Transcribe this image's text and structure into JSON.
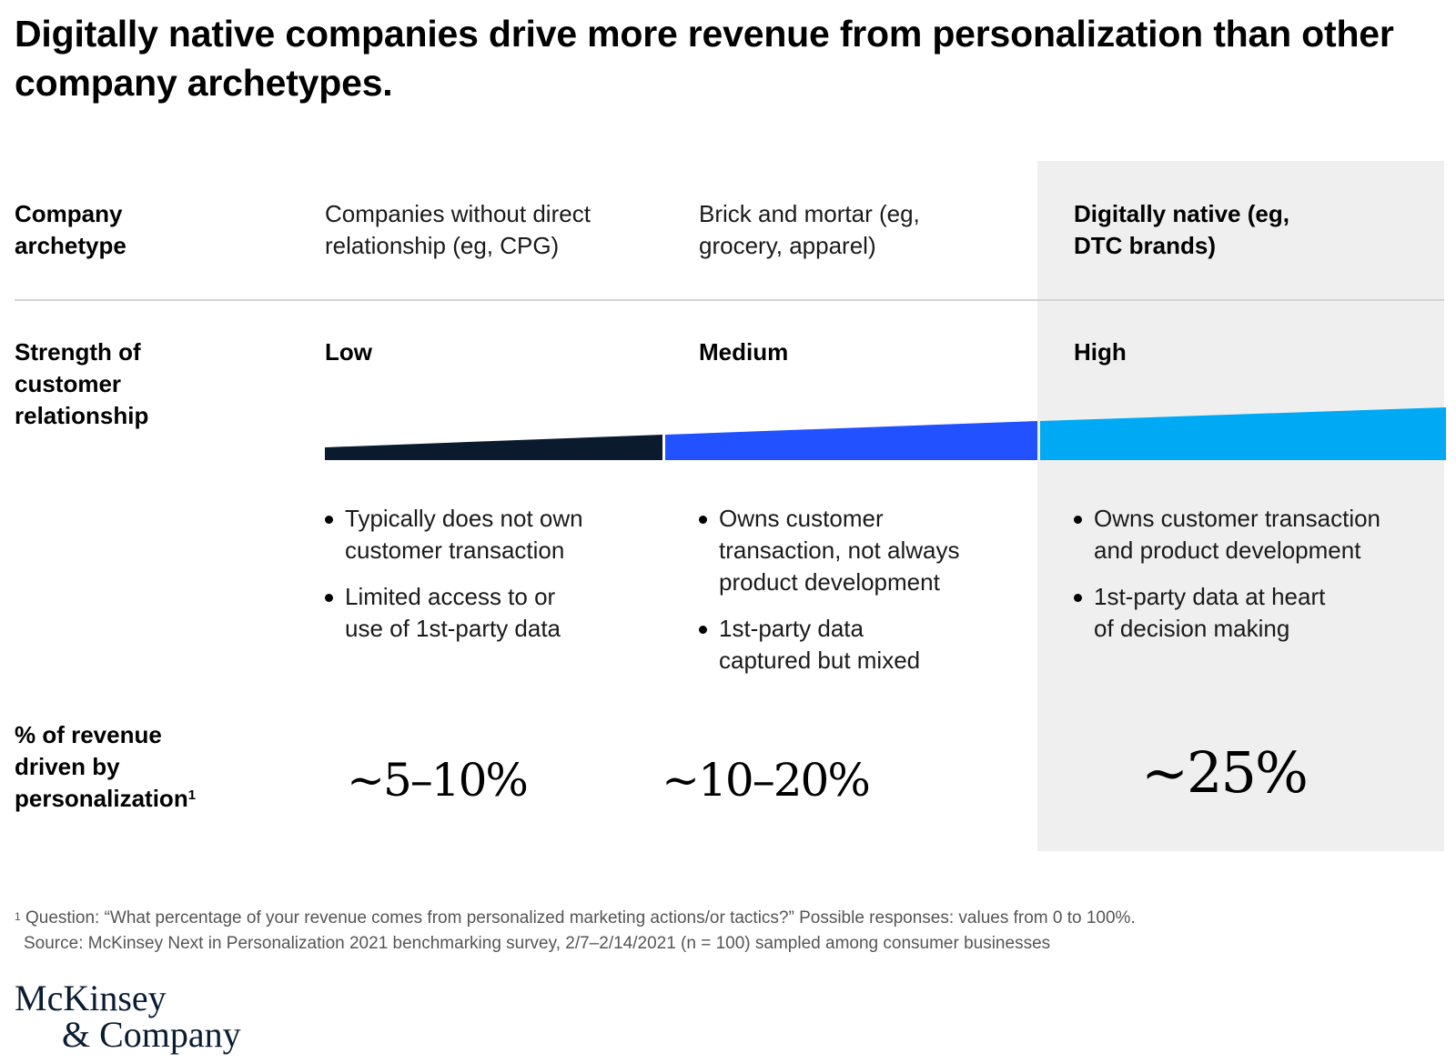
{
  "title": "Digitally native companies drive more revenue from personalization than other company archetypes.",
  "row_labels": {
    "archetype_line1": "Company",
    "archetype_line2": "archetype",
    "strength_line1": "Strength of",
    "strength_line2": "customer",
    "strength_line3": "relationship",
    "revenue_line1": "% of revenue",
    "revenue_line2": "driven by",
    "revenue_line3": "personalization",
    "revenue_footnote_mark": "1"
  },
  "columns": [
    {
      "archetype_line1": "Companies without direct",
      "archetype_line2": "relationship (eg, CPG)",
      "strength": "Low",
      "bar_color": "#0b1b2e",
      "bullets": [
        {
          "line1": "Typically does not own",
          "line2": "customer transaction"
        },
        {
          "line1": "Limited access to or",
          "line2": "use of 1st-party data"
        }
      ],
      "revenue": "~5–10%"
    },
    {
      "archetype_line1": "Brick and mortar (eg,",
      "archetype_line2": "grocery, apparel)",
      "strength": "Medium",
      "bar_color": "#2251ff",
      "bullets": [
        {
          "line1": "Owns customer",
          "line2": "transaction, not always",
          "line3": "product development"
        },
        {
          "line1": "1st-party data",
          "line2": "captured but mixed"
        }
      ],
      "revenue": "~10–20%"
    },
    {
      "archetype_line1": "Digitally native (eg,",
      "archetype_line2": "DTC brands)",
      "strength": "High",
      "bar_color": "#00a9f4",
      "bullets": [
        {
          "line1": "Owns customer transaction",
          "line2": "and product development"
        },
        {
          "line1": "1st-party data at heart",
          "line2": "of decision making"
        }
      ],
      "revenue": "~25%"
    }
  ],
  "highlight_color": "#efefef",
  "footnote": {
    "mark": "1",
    "question": "Question: “What percentage of your revenue comes from personalized marketing actions/or tactics?” Possible responses: values from 0 to 100%.",
    "source": "Source: McKinsey Next in Personalization 2021 benchmarking survey, 2/7–2/14/2021 (n = 100) sampled among consumer businesses"
  },
  "logo": {
    "line1": "McKinsey",
    "line2": "& Company"
  }
}
